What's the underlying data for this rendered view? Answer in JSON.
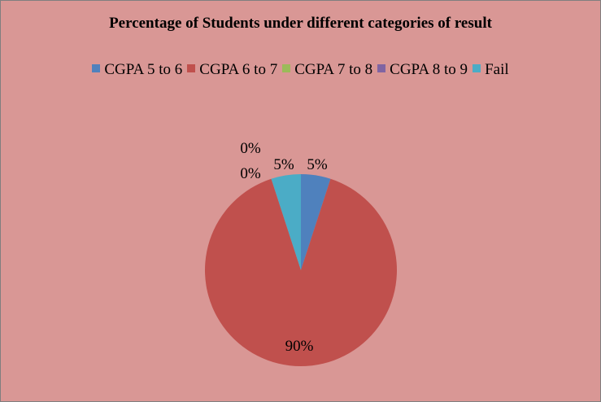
{
  "chart_data": {
    "type": "pie",
    "title": "Percentage of Students under different  categories of result",
    "legend_position": "top",
    "categories": [
      "CGPA 5 to 6",
      "CGPA 6 to 7",
      "CGPA 7 to 8",
      "CGPA 8 to 9",
      "Fail"
    ],
    "values": [
      5,
      90,
      0,
      0,
      5
    ],
    "data_labels": [
      "5%",
      "90%",
      "0%",
      "0%",
      "5%"
    ],
    "colors": [
      "#4f81bd",
      "#c0504d",
      "#9bbb59",
      "#8064a2",
      "#4bacc6"
    ]
  }
}
